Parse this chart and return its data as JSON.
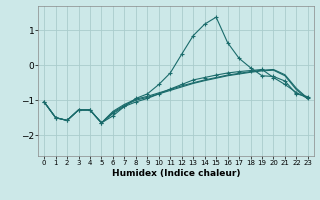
{
  "xlabel": "Humidex (Indice chaleur)",
  "background_color": "#cce8e8",
  "grid_color": "#aacccc",
  "line_color": "#1a6b6b",
  "xlim": [
    -0.5,
    23.5
  ],
  "ylim": [
    -2.6,
    1.7
  ],
  "yticks": [
    -2,
    -1,
    0,
    1
  ],
  "xticks": [
    0,
    1,
    2,
    3,
    4,
    5,
    6,
    7,
    8,
    9,
    10,
    11,
    12,
    13,
    14,
    15,
    16,
    17,
    18,
    19,
    20,
    21,
    22,
    23
  ],
  "series": [
    {
      "x": [
        0,
        1,
        2,
        3,
        4,
        5,
        6,
        7,
        8,
        9,
        10,
        11,
        12,
        13,
        14,
        15,
        16,
        17,
        18,
        19,
        20,
        21,
        22,
        23
      ],
      "y": [
        -1.05,
        -1.5,
        -1.58,
        -1.28,
        -1.28,
        -1.65,
        -1.45,
        -1.18,
        -0.95,
        -0.82,
        -0.55,
        -0.22,
        0.32,
        0.85,
        1.18,
        1.38,
        0.65,
        0.2,
        -0.07,
        -0.3,
        -0.32,
        -0.45,
        -0.82,
        -0.9
      ],
      "marker": "+"
    },
    {
      "x": [
        0,
        1,
        2,
        3,
        4,
        5,
        6,
        7,
        8,
        9,
        10,
        11,
        12,
        13,
        14,
        15,
        16,
        17,
        18,
        19,
        20,
        21,
        22,
        23
      ],
      "y": [
        -1.05,
        -1.5,
        -1.58,
        -1.28,
        -1.28,
        -1.65,
        -1.38,
        -1.18,
        -1.05,
        -0.95,
        -0.82,
        -0.68,
        -0.55,
        -0.42,
        -0.35,
        -0.28,
        -0.22,
        -0.18,
        -0.15,
        -0.12,
        -0.35,
        -0.55,
        -0.78,
        -0.95
      ],
      "marker": "+"
    },
    {
      "x": [
        0,
        1,
        2,
        3,
        4,
        5,
        6,
        7,
        8,
        9,
        10,
        11,
        12,
        13,
        14,
        15,
        16,
        17,
        18,
        19,
        20,
        21,
        22,
        23
      ],
      "y": [
        -1.05,
        -1.5,
        -1.58,
        -1.28,
        -1.28,
        -1.65,
        -1.35,
        -1.15,
        -1.0,
        -0.92,
        -0.82,
        -0.72,
        -0.62,
        -0.52,
        -0.44,
        -0.37,
        -0.3,
        -0.25,
        -0.2,
        -0.16,
        -0.14,
        -0.3,
        -0.7,
        -0.97
      ],
      "marker": null
    },
    {
      "x": [
        0,
        1,
        2,
        3,
        4,
        5,
        6,
        7,
        8,
        9,
        10,
        11,
        12,
        13,
        14,
        15,
        16,
        17,
        18,
        19,
        20,
        21,
        22,
        23
      ],
      "y": [
        -1.05,
        -1.5,
        -1.58,
        -1.28,
        -1.28,
        -1.65,
        -1.32,
        -1.12,
        -0.97,
        -0.89,
        -0.79,
        -0.69,
        -0.59,
        -0.5,
        -0.42,
        -0.35,
        -0.28,
        -0.23,
        -0.18,
        -0.14,
        -0.12,
        -0.27,
        -0.66,
        -0.95
      ],
      "marker": null
    }
  ]
}
